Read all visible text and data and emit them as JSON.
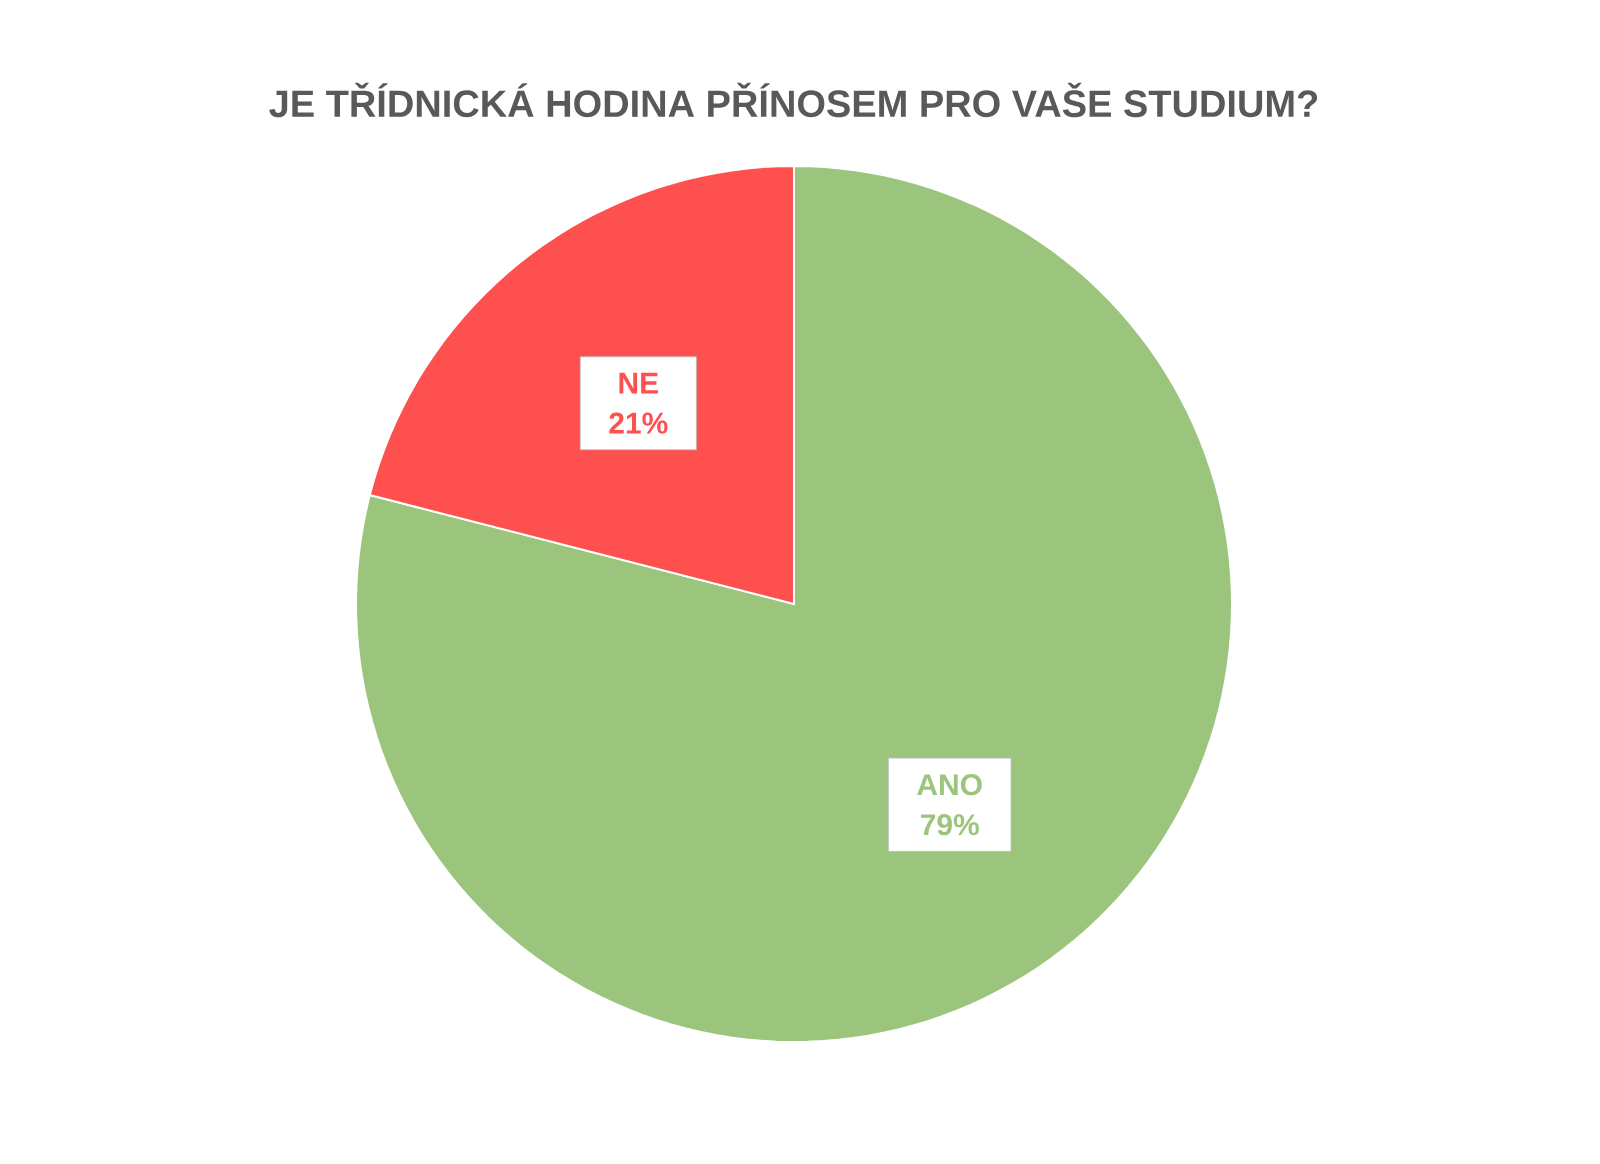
{
  "chart_data": {
    "type": "pie",
    "title": "JE TŘÍDNICKÁ HODINA PŘÍNOSEM PRO VAŠE STUDIUM?",
    "categories": [
      "ANO",
      "NE"
    ],
    "values": [
      79,
      21
    ],
    "colors": [
      "#9bc47c",
      "#ff5050"
    ],
    "value_labels": [
      "79%",
      "21%"
    ]
  }
}
